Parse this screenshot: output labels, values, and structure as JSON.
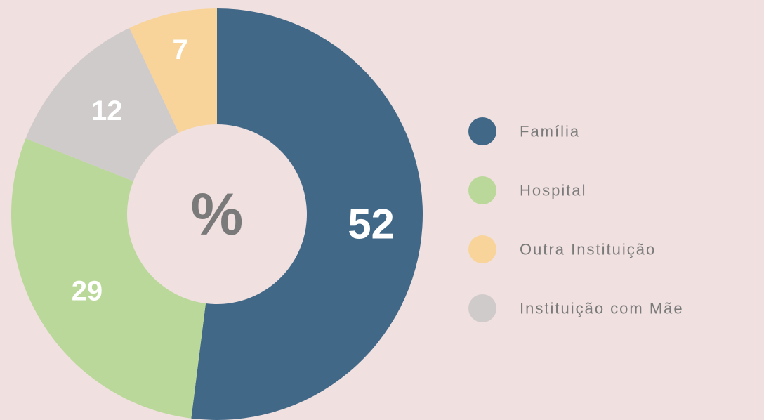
{
  "chart_data": {
    "type": "donut",
    "center_label": "%",
    "categories": [
      "Família",
      "Hospital",
      "Outra Instituição",
      "Instituição com Mãe"
    ],
    "values": [
      52,
      29,
      7,
      12
    ],
    "colors": [
      "#416887",
      "#bad899",
      "#f9d49a",
      "#d0cbcb"
    ]
  }
}
